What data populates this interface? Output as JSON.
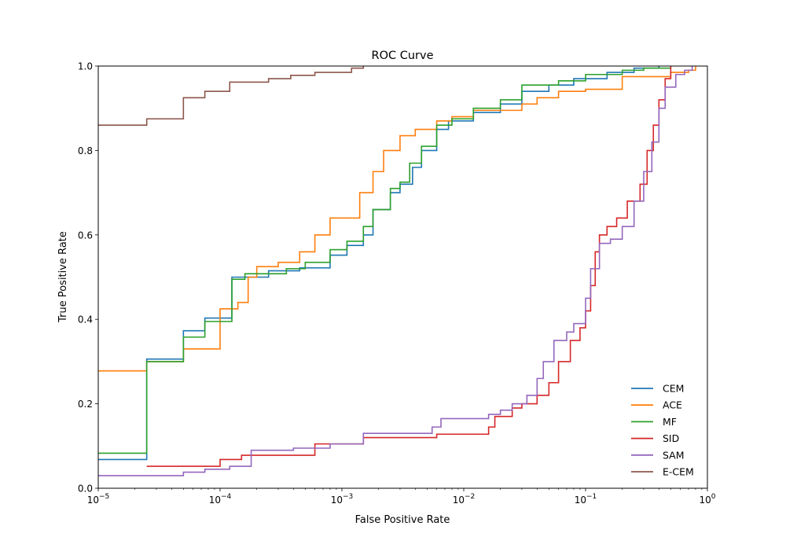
{
  "chart_data": {
    "type": "line",
    "title": "ROC Curve",
    "xlabel": "False Positive Rate",
    "ylabel": "True Positive Rate",
    "xscale": "log",
    "xlim": [
      1e-05,
      1
    ],
    "ylim": [
      0,
      1
    ],
    "x_ticks": [
      {
        "value": 1e-05,
        "base": "10",
        "exp": "−5"
      },
      {
        "value": 0.0001,
        "base": "10",
        "exp": "−4"
      },
      {
        "value": 0.001,
        "base": "10",
        "exp": "−3"
      },
      {
        "value": 0.01,
        "base": "10",
        "exp": "−2"
      },
      {
        "value": 0.1,
        "base": "10",
        "exp": "−1"
      },
      {
        "value": 1,
        "base": "10",
        "exp": "0"
      }
    ],
    "y_ticks": [
      "0.0",
      "0.2",
      "0.4",
      "0.6",
      "0.8",
      "1.0"
    ],
    "grid": false,
    "legend_position": "lower-right",
    "series": [
      {
        "name": "CEM",
        "color": "#1f77b4",
        "points": [
          [
            1e-05,
            0.068
          ],
          [
            2.5e-05,
            0.068
          ],
          [
            2.5e-05,
            0.306
          ],
          [
            5e-05,
            0.306
          ],
          [
            5e-05,
            0.373
          ],
          [
            7.5e-05,
            0.373
          ],
          [
            7.5e-05,
            0.403
          ],
          [
            0.000125,
            0.403
          ],
          [
            0.000125,
            0.5
          ],
          [
            0.00025,
            0.5
          ],
          [
            0.00025,
            0.515
          ],
          [
            0.00045,
            0.515
          ],
          [
            0.00045,
            0.522
          ],
          [
            0.0008,
            0.522
          ],
          [
            0.0008,
            0.552
          ],
          [
            0.0011,
            0.552
          ],
          [
            0.0011,
            0.575
          ],
          [
            0.0015,
            0.575
          ],
          [
            0.0015,
            0.6
          ],
          [
            0.0018,
            0.6
          ],
          [
            0.0018,
            0.66
          ],
          [
            0.0025,
            0.66
          ],
          [
            0.0025,
            0.7
          ],
          [
            0.003,
            0.7
          ],
          [
            0.003,
            0.72
          ],
          [
            0.0038,
            0.72
          ],
          [
            0.0038,
            0.76
          ],
          [
            0.0045,
            0.76
          ],
          [
            0.0045,
            0.8
          ],
          [
            0.006,
            0.8
          ],
          [
            0.006,
            0.85
          ],
          [
            0.0075,
            0.85
          ],
          [
            0.0075,
            0.87
          ],
          [
            0.012,
            0.87
          ],
          [
            0.012,
            0.89
          ],
          [
            0.02,
            0.89
          ],
          [
            0.02,
            0.91
          ],
          [
            0.03,
            0.91
          ],
          [
            0.03,
            0.94
          ],
          [
            0.05,
            0.94
          ],
          [
            0.05,
            0.955
          ],
          [
            0.08,
            0.955
          ],
          [
            0.08,
            0.97
          ],
          [
            0.15,
            0.97
          ],
          [
            0.15,
            0.985
          ],
          [
            0.25,
            0.985
          ],
          [
            0.25,
            0.995
          ],
          [
            0.4,
            0.995
          ],
          [
            0.4,
            1.0
          ]
        ]
      },
      {
        "name": "ACE",
        "color": "#ff7f0e",
        "points": [
          [
            1e-05,
            0.278
          ],
          [
            2.5e-05,
            0.278
          ],
          [
            2.5e-05,
            0.3
          ],
          [
            5e-05,
            0.3
          ],
          [
            5e-05,
            0.33
          ],
          [
            0.0001,
            0.33
          ],
          [
            0.0001,
            0.425
          ],
          [
            0.00014,
            0.425
          ],
          [
            0.00014,
            0.44
          ],
          [
            0.00017,
            0.44
          ],
          [
            0.00017,
            0.5
          ],
          [
            0.0002,
            0.5
          ],
          [
            0.0002,
            0.525
          ],
          [
            0.0003,
            0.525
          ],
          [
            0.0003,
            0.535
          ],
          [
            0.00045,
            0.535
          ],
          [
            0.00045,
            0.56
          ],
          [
            0.0006,
            0.56
          ],
          [
            0.0006,
            0.6
          ],
          [
            0.0008,
            0.6
          ],
          [
            0.0008,
            0.64
          ],
          [
            0.0014,
            0.64
          ],
          [
            0.0014,
            0.7
          ],
          [
            0.0018,
            0.7
          ],
          [
            0.0018,
            0.75
          ],
          [
            0.0022,
            0.75
          ],
          [
            0.0022,
            0.8
          ],
          [
            0.003,
            0.8
          ],
          [
            0.003,
            0.835
          ],
          [
            0.004,
            0.835
          ],
          [
            0.004,
            0.85
          ],
          [
            0.006,
            0.85
          ],
          [
            0.006,
            0.87
          ],
          [
            0.008,
            0.87
          ],
          [
            0.008,
            0.88
          ],
          [
            0.012,
            0.88
          ],
          [
            0.012,
            0.895
          ],
          [
            0.03,
            0.895
          ],
          [
            0.03,
            0.91
          ],
          [
            0.04,
            0.91
          ],
          [
            0.04,
            0.925
          ],
          [
            0.06,
            0.925
          ],
          [
            0.06,
            0.94
          ],
          [
            0.1,
            0.94
          ],
          [
            0.1,
            0.945
          ],
          [
            0.2,
            0.945
          ],
          [
            0.2,
            0.975
          ],
          [
            0.5,
            0.975
          ],
          [
            0.5,
            0.985
          ],
          [
            0.7,
            0.985
          ],
          [
            0.7,
            0.99
          ],
          [
            0.8,
            0.99
          ],
          [
            0.8,
            1.0
          ]
        ]
      },
      {
        "name": "MF",
        "color": "#2ca02c",
        "points": [
          [
            1e-05,
            0.083
          ],
          [
            2.5e-05,
            0.083
          ],
          [
            2.5e-05,
            0.3
          ],
          [
            5e-05,
            0.3
          ],
          [
            5e-05,
            0.358
          ],
          [
            7.5e-05,
            0.358
          ],
          [
            7.5e-05,
            0.395
          ],
          [
            0.000125,
            0.395
          ],
          [
            0.000125,
            0.495
          ],
          [
            0.00016,
            0.495
          ],
          [
            0.00016,
            0.508
          ],
          [
            0.00035,
            0.508
          ],
          [
            0.00035,
            0.52
          ],
          [
            0.0005,
            0.52
          ],
          [
            0.0005,
            0.535
          ],
          [
            0.0008,
            0.535
          ],
          [
            0.0008,
            0.565
          ],
          [
            0.0011,
            0.565
          ],
          [
            0.0011,
            0.585
          ],
          [
            0.0015,
            0.585
          ],
          [
            0.0015,
            0.62
          ],
          [
            0.0018,
            0.62
          ],
          [
            0.0018,
            0.66
          ],
          [
            0.0025,
            0.66
          ],
          [
            0.0025,
            0.71
          ],
          [
            0.003,
            0.71
          ],
          [
            0.003,
            0.725
          ],
          [
            0.0036,
            0.725
          ],
          [
            0.0036,
            0.77
          ],
          [
            0.0045,
            0.77
          ],
          [
            0.0045,
            0.81
          ],
          [
            0.006,
            0.81
          ],
          [
            0.006,
            0.86
          ],
          [
            0.008,
            0.86
          ],
          [
            0.008,
            0.875
          ],
          [
            0.012,
            0.875
          ],
          [
            0.012,
            0.9
          ],
          [
            0.02,
            0.9
          ],
          [
            0.02,
            0.92
          ],
          [
            0.03,
            0.92
          ],
          [
            0.03,
            0.955
          ],
          [
            0.06,
            0.955
          ],
          [
            0.06,
            0.965
          ],
          [
            0.1,
            0.965
          ],
          [
            0.1,
            0.98
          ],
          [
            0.2,
            0.98
          ],
          [
            0.2,
            0.99
          ],
          [
            0.3,
            0.99
          ],
          [
            0.3,
            0.995
          ],
          [
            0.5,
            0.995
          ],
          [
            0.5,
            1.0
          ]
        ]
      },
      {
        "name": "SID",
        "color": "#d62728",
        "points": [
          [
            2.5e-05,
            0.052
          ],
          [
            0.0001,
            0.052
          ],
          [
            0.0001,
            0.068
          ],
          [
            0.00015,
            0.068
          ],
          [
            0.00015,
            0.078
          ],
          [
            0.0006,
            0.078
          ],
          [
            0.0006,
            0.105
          ],
          [
            0.0015,
            0.105
          ],
          [
            0.0015,
            0.12
          ],
          [
            0.006,
            0.12
          ],
          [
            0.006,
            0.128
          ],
          [
            0.016,
            0.128
          ],
          [
            0.016,
            0.145
          ],
          [
            0.018,
            0.145
          ],
          [
            0.018,
            0.17
          ],
          [
            0.025,
            0.17
          ],
          [
            0.025,
            0.19
          ],
          [
            0.03,
            0.19
          ],
          [
            0.03,
            0.2
          ],
          [
            0.04,
            0.2
          ],
          [
            0.04,
            0.22
          ],
          [
            0.05,
            0.22
          ],
          [
            0.05,
            0.25
          ],
          [
            0.06,
            0.25
          ],
          [
            0.06,
            0.3
          ],
          [
            0.075,
            0.3
          ],
          [
            0.075,
            0.35
          ],
          [
            0.09,
            0.35
          ],
          [
            0.09,
            0.38
          ],
          [
            0.1,
            0.38
          ],
          [
            0.1,
            0.42
          ],
          [
            0.11,
            0.42
          ],
          [
            0.11,
            0.48
          ],
          [
            0.12,
            0.48
          ],
          [
            0.12,
            0.56
          ],
          [
            0.13,
            0.56
          ],
          [
            0.13,
            0.6
          ],
          [
            0.15,
            0.6
          ],
          [
            0.15,
            0.62
          ],
          [
            0.18,
            0.62
          ],
          [
            0.18,
            0.64
          ],
          [
            0.22,
            0.64
          ],
          [
            0.22,
            0.68
          ],
          [
            0.28,
            0.68
          ],
          [
            0.28,
            0.72
          ],
          [
            0.32,
            0.72
          ],
          [
            0.32,
            0.8
          ],
          [
            0.36,
            0.8
          ],
          [
            0.36,
            0.86
          ],
          [
            0.4,
            0.86
          ],
          [
            0.4,
            0.92
          ],
          [
            0.45,
            0.92
          ],
          [
            0.45,
            0.97
          ],
          [
            0.5,
            0.97
          ],
          [
            0.5,
            1.0
          ]
        ]
      },
      {
        "name": "SAM",
        "color": "#9467bd",
        "points": [
          [
            1e-05,
            0.03
          ],
          [
            5e-05,
            0.03
          ],
          [
            5e-05,
            0.038
          ],
          [
            7.5e-05,
            0.038
          ],
          [
            7.5e-05,
            0.045
          ],
          [
            0.00012,
            0.045
          ],
          [
            0.00012,
            0.052
          ],
          [
            0.00018,
            0.052
          ],
          [
            0.00018,
            0.09
          ],
          [
            0.0004,
            0.09
          ],
          [
            0.0004,
            0.095
          ],
          [
            0.0008,
            0.095
          ],
          [
            0.0008,
            0.105
          ],
          [
            0.0015,
            0.105
          ],
          [
            0.0015,
            0.13
          ],
          [
            0.0055,
            0.13
          ],
          [
            0.0055,
            0.145
          ],
          [
            0.0065,
            0.145
          ],
          [
            0.0065,
            0.165
          ],
          [
            0.016,
            0.165
          ],
          [
            0.016,
            0.175
          ],
          [
            0.02,
            0.175
          ],
          [
            0.02,
            0.185
          ],
          [
            0.025,
            0.185
          ],
          [
            0.025,
            0.2
          ],
          [
            0.033,
            0.2
          ],
          [
            0.033,
            0.22
          ],
          [
            0.04,
            0.22
          ],
          [
            0.04,
            0.26
          ],
          [
            0.045,
            0.26
          ],
          [
            0.045,
            0.3
          ],
          [
            0.055,
            0.3
          ],
          [
            0.055,
            0.35
          ],
          [
            0.07,
            0.35
          ],
          [
            0.07,
            0.37
          ],
          [
            0.08,
            0.37
          ],
          [
            0.08,
            0.39
          ],
          [
            0.1,
            0.39
          ],
          [
            0.1,
            0.45
          ],
          [
            0.11,
            0.45
          ],
          [
            0.11,
            0.52
          ],
          [
            0.13,
            0.52
          ],
          [
            0.13,
            0.58
          ],
          [
            0.16,
            0.58
          ],
          [
            0.16,
            0.59
          ],
          [
            0.2,
            0.59
          ],
          [
            0.2,
            0.62
          ],
          [
            0.25,
            0.62
          ],
          [
            0.25,
            0.68
          ],
          [
            0.3,
            0.68
          ],
          [
            0.3,
            0.75
          ],
          [
            0.35,
            0.75
          ],
          [
            0.35,
            0.82
          ],
          [
            0.4,
            0.82
          ],
          [
            0.4,
            0.9
          ],
          [
            0.45,
            0.9
          ],
          [
            0.45,
            0.95
          ],
          [
            0.55,
            0.95
          ],
          [
            0.55,
            0.98
          ],
          [
            0.65,
            0.98
          ],
          [
            0.65,
            0.99
          ],
          [
            0.75,
            0.99
          ],
          [
            0.75,
            1.0
          ]
        ]
      },
      {
        "name": "E-CEM",
        "color": "#8c564b",
        "points": [
          [
            1e-05,
            0.86
          ],
          [
            2.5e-05,
            0.86
          ],
          [
            2.5e-05,
            0.875
          ],
          [
            5e-05,
            0.875
          ],
          [
            5e-05,
            0.925
          ],
          [
            7.5e-05,
            0.925
          ],
          [
            7.5e-05,
            0.94
          ],
          [
            0.00012,
            0.94
          ],
          [
            0.00012,
            0.962
          ],
          [
            0.00025,
            0.962
          ],
          [
            0.00025,
            0.97
          ],
          [
            0.00038,
            0.97
          ],
          [
            0.00038,
            0.978
          ],
          [
            0.0006,
            0.978
          ],
          [
            0.0006,
            0.985
          ],
          [
            0.0012,
            0.985
          ],
          [
            0.0012,
            0.995
          ],
          [
            0.0015,
            0.995
          ],
          [
            0.0015,
            1.0
          ]
        ]
      }
    ]
  }
}
